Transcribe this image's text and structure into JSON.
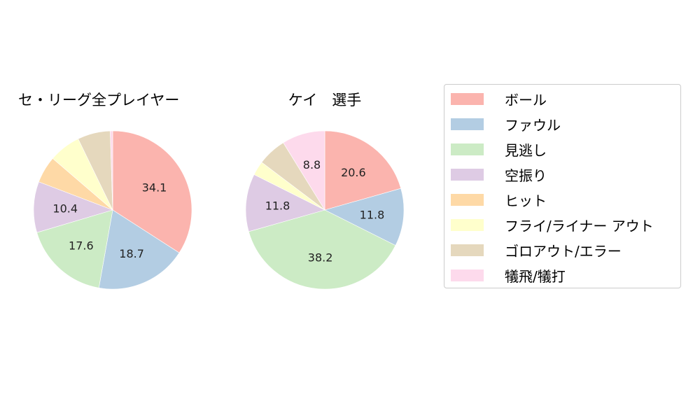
{
  "chart_data": [
    {
      "type": "pie",
      "title": "セ・リーグ全プレイヤー",
      "categories": [
        "ボール",
        "ファウル",
        "見逃し",
        "空振り",
        "ヒット",
        "フライ/ライナー アウト",
        "ゴロアウト/エラー",
        "犠飛/犠打"
      ],
      "values": [
        34.1,
        18.7,
        17.6,
        10.4,
        5.5,
        6.5,
        6.7,
        0.5
      ],
      "labels_shown": [
        "34.1",
        "18.7",
        "17.6",
        "10.4",
        "",
        "",
        "",
        ""
      ]
    },
    {
      "type": "pie",
      "title": "ケイ　選手",
      "categories": [
        "ボール",
        "ファウル",
        "見逃し",
        "空振り",
        "ヒット",
        "フライ/ライナー アウト",
        "ゴロアウト/エラー",
        "犠飛/犠打"
      ],
      "values": [
        20.6,
        11.8,
        38.2,
        11.8,
        0,
        2.9,
        5.9,
        8.8
      ],
      "labels_shown": [
        "20.6",
        "11.8",
        "38.2",
        "11.8",
        "",
        "",
        "",
        "8.8"
      ]
    }
  ],
  "colors": [
    "#fbb4ae",
    "#b3cde3",
    "#ccebc5",
    "#decbe4",
    "#fed9a6",
    "#ffffcc",
    "#e5d8bd",
    "#fddaec"
  ],
  "titles": {
    "left": "セ・リーグ全プレイヤー",
    "right": "ケイ　選手"
  },
  "legend": {
    "items": [
      {
        "label": "ボール",
        "color": "#fbb4ae"
      },
      {
        "label": "ファウル",
        "color": "#b3cde3"
      },
      {
        "label": "見逃し",
        "color": "#ccebc5"
      },
      {
        "label": "空振り",
        "color": "#decbe4"
      },
      {
        "label": "ヒット",
        "color": "#fed9a6"
      },
      {
        "label": "フライ/ライナー アウト",
        "color": "#ffffcc"
      },
      {
        "label": "ゴロアウト/エラー",
        "color": "#e5d8bd"
      },
      {
        "label": "犠飛/犠打",
        "color": "#fddaec"
      }
    ]
  }
}
